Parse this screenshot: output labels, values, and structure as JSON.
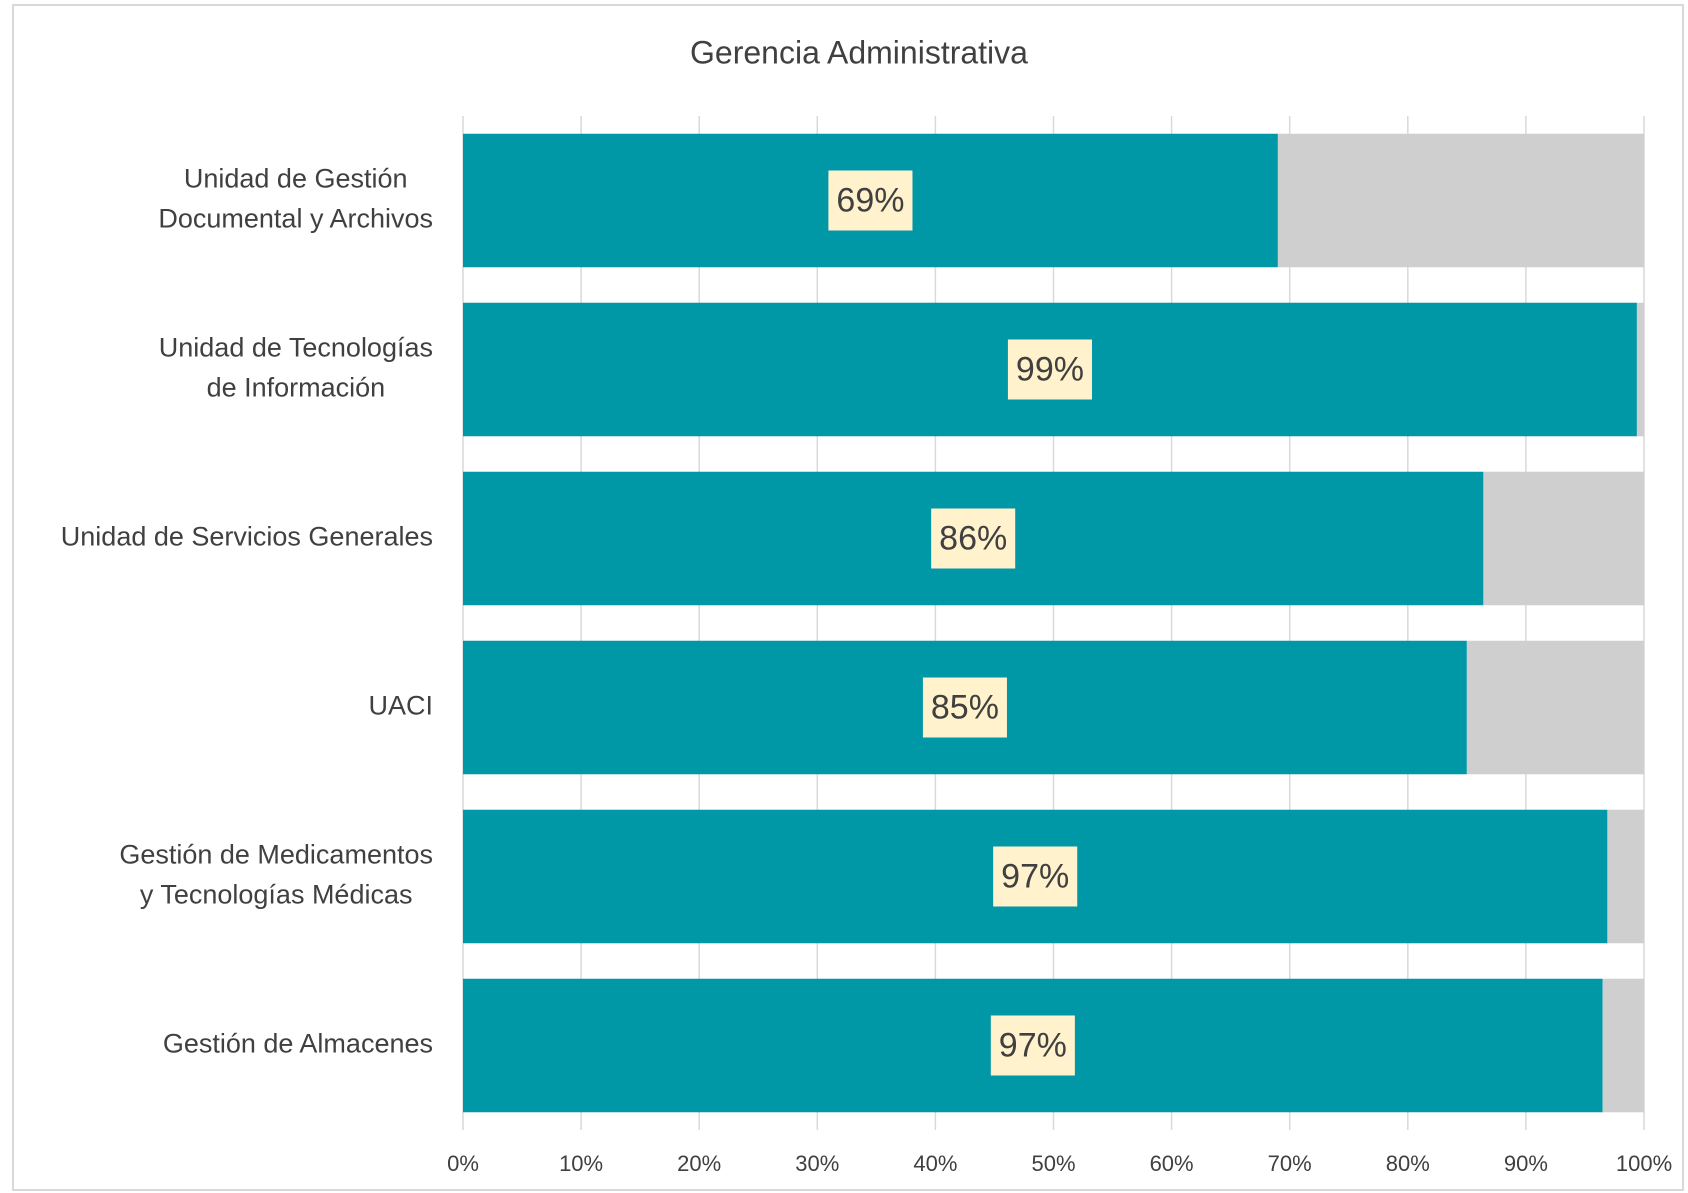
{
  "chart_data": {
    "type": "stacked_bar_horizontal",
    "title": "Gerencia Administrativa",
    "categories": [
      [
        "Unidad de Gestión",
        "Documental y Archivos"
      ],
      [
        "Unidad de Tecnologías",
        "de Información"
      ],
      [
        "Unidad de Servicios Generales"
      ],
      [
        "UACI"
      ],
      [
        "Gestión de Medicamentos",
        "y Tecnologías Médicas"
      ],
      [
        "Gestión de Almacenes"
      ]
    ],
    "series": [
      {
        "color": "#0097a7",
        "values": [
          69,
          99.4,
          86.4,
          85,
          96.9,
          96.5
        ],
        "value_labels": [
          "69%",
          "99%",
          "86%",
          "85%",
          "97%",
          "97%"
        ]
      },
      {
        "color": "#cfcfcf",
        "values": [
          31,
          0.6,
          13.6,
          15,
          3.1,
          3.5
        ]
      }
    ],
    "xlim": [
      0,
      100
    ],
    "xticks": [
      {
        "value": 0,
        "label": "0%"
      },
      {
        "value": 10,
        "label": "10%"
      },
      {
        "value": 20,
        "label": "20%"
      },
      {
        "value": 30,
        "label": "30%"
      },
      {
        "value": 40,
        "label": "40%"
      },
      {
        "value": 50,
        "label": "50%"
      },
      {
        "value": 60,
        "label": "60%"
      },
      {
        "value": 70,
        "label": "70%"
      },
      {
        "value": 80,
        "label": "80%"
      },
      {
        "value": 90,
        "label": "90%"
      },
      {
        "value": 100,
        "label": "100%"
      }
    ],
    "grid": true
  }
}
